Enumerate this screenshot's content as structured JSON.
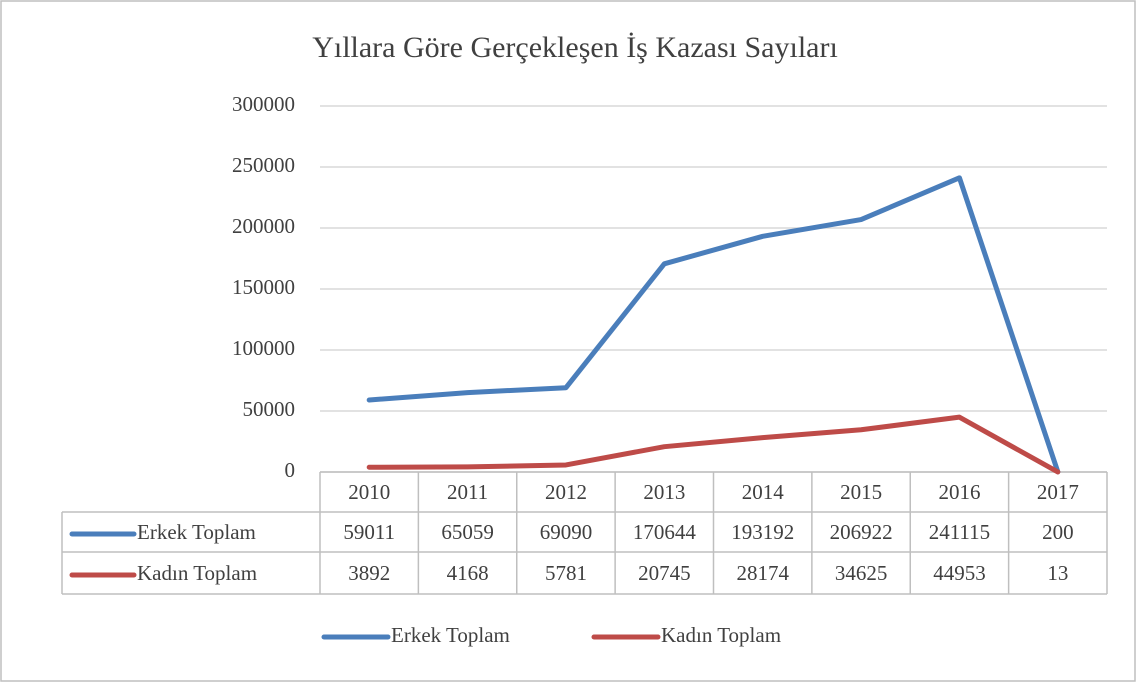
{
  "chart_data": {
    "type": "line",
    "title": "Yıllara  Göre Gerçekleşen İş Kazası Sayıları",
    "categories": [
      "2010",
      "2011",
      "2012",
      "2013",
      "2014",
      "2015",
      "2016",
      "2017"
    ],
    "series": [
      {
        "name": "Erkek Toplam",
        "color": "#4a7ebb",
        "values": [
          59011,
          65059,
          69090,
          170644,
          193192,
          206922,
          241115,
          200
        ]
      },
      {
        "name": "Kadın Toplam",
        "color": "#be4b48",
        "values": [
          3892,
          4168,
          5781,
          20745,
          28174,
          34625,
          44953,
          13
        ]
      }
    ],
    "ylim": [
      0,
      300000
    ],
    "yticks": [
      0,
      50000,
      100000,
      150000,
      200000,
      250000,
      300000
    ],
    "grid": true,
    "legend": "bottom",
    "data_table": true
  }
}
